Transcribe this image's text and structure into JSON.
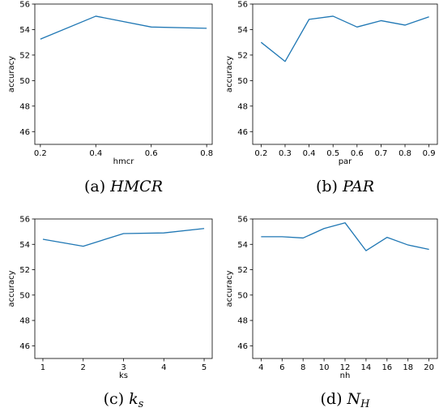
{
  "chart_data": [
    {
      "type": "line",
      "xlabel": "hmcr",
      "ylabel": "accuracy",
      "caption_prefix": "(a) ",
      "caption_math": "HMCR",
      "caption_sub": "",
      "xlim": [
        0.18,
        0.82
      ],
      "ylim": [
        45,
        56
      ],
      "xticks": [
        0.2,
        0.4,
        0.6,
        0.8
      ],
      "xtick_labels": [
        "0.2",
        "0.4",
        "0.6",
        "0.8"
      ],
      "yticks": [
        46,
        48,
        50,
        52,
        54,
        56
      ],
      "ytick_labels": [
        "46",
        "48",
        "50",
        "52",
        "54",
        "56"
      ],
      "line_color": "#1f77b4",
      "x": [
        0.2,
        0.4,
        0.6,
        0.8
      ],
      "y": [
        53.25,
        55.05,
        54.2,
        54.1
      ]
    },
    {
      "type": "line",
      "xlabel": "par",
      "ylabel": "accuracy",
      "caption_prefix": "(b) ",
      "caption_math": "PAR",
      "caption_sub": "",
      "xlim": [
        0.165,
        0.935
      ],
      "ylim": [
        45,
        56
      ],
      "xticks": [
        0.2,
        0.3,
        0.4,
        0.5,
        0.6,
        0.7,
        0.8,
        0.9
      ],
      "xtick_labels": [
        "0.2",
        "0.3",
        "0.4",
        "0.5",
        "0.6",
        "0.7",
        "0.8",
        "0.9"
      ],
      "yticks": [
        46,
        48,
        50,
        52,
        54,
        56
      ],
      "ytick_labels": [
        "46",
        "48",
        "50",
        "52",
        "54",
        "56"
      ],
      "line_color": "#1f77b4",
      "x": [
        0.2,
        0.3,
        0.4,
        0.5,
        0.6,
        0.7,
        0.8,
        0.9
      ],
      "y": [
        53.0,
        51.5,
        54.8,
        55.05,
        54.2,
        54.7,
        54.35,
        55.0
      ]
    },
    {
      "type": "line",
      "xlabel": "ks",
      "ylabel": "accuracy",
      "caption_prefix": "(c) ",
      "caption_math": "k",
      "caption_sub": "s",
      "xlim": [
        0.8,
        5.2
      ],
      "ylim": [
        45,
        56
      ],
      "xticks": [
        1,
        2,
        3,
        4,
        5
      ],
      "xtick_labels": [
        "1",
        "2",
        "3",
        "4",
        "5"
      ],
      "yticks": [
        46,
        48,
        50,
        52,
        54,
        56
      ],
      "ytick_labels": [
        "46",
        "48",
        "50",
        "52",
        "54",
        "56"
      ],
      "line_color": "#1f77b4",
      "x": [
        1,
        2,
        3,
        4,
        5
      ],
      "y": [
        54.4,
        53.85,
        54.85,
        54.9,
        55.25
      ]
    },
    {
      "type": "line",
      "xlabel": "nh",
      "ylabel": "accuracy",
      "caption_prefix": "(d) ",
      "caption_math": "N",
      "caption_sub": "H",
      "xlim": [
        3.2,
        20.8
      ],
      "ylim": [
        45,
        56
      ],
      "xticks": [
        4,
        6,
        8,
        10,
        12,
        14,
        16,
        18,
        20
      ],
      "xtick_labels": [
        "4",
        "6",
        "8",
        "10",
        "12",
        "14",
        "16",
        "18",
        "20"
      ],
      "yticks": [
        46,
        48,
        50,
        52,
        54,
        56
      ],
      "ytick_labels": [
        "46",
        "48",
        "50",
        "52",
        "54",
        "56"
      ],
      "line_color": "#1f77b4",
      "x": [
        4,
        6,
        8,
        10,
        12,
        14,
        16,
        18,
        20
      ],
      "y": [
        54.6,
        54.6,
        54.5,
        55.25,
        55.7,
        53.5,
        54.55,
        53.95,
        53.6
      ]
    }
  ]
}
